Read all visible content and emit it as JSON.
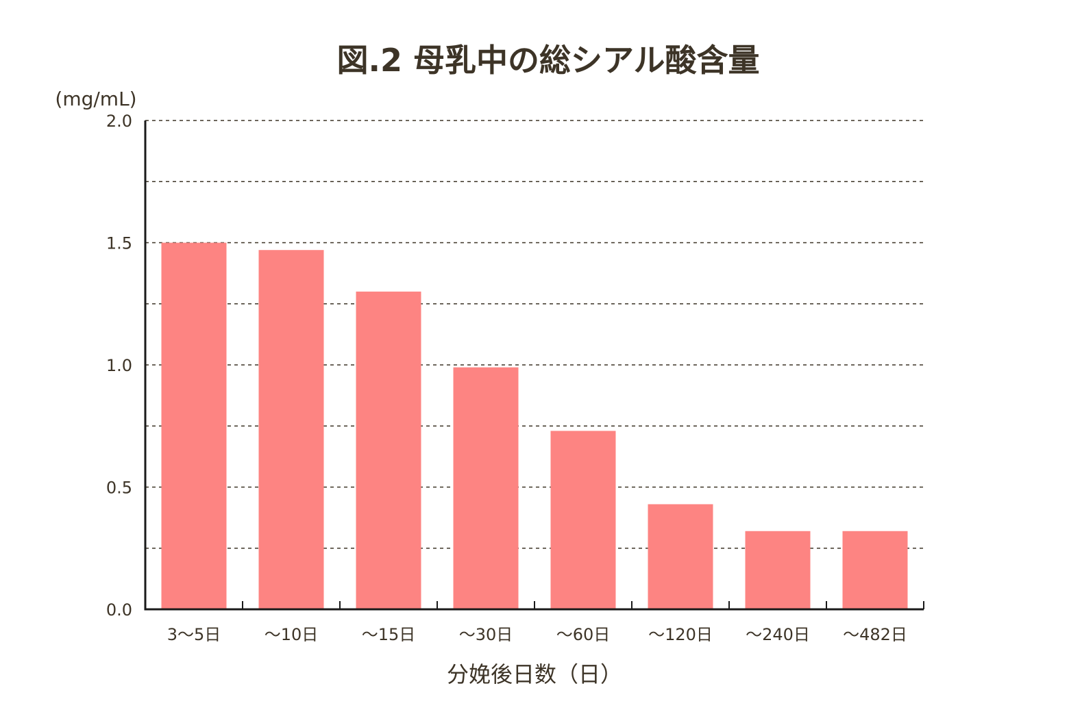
{
  "chart_data": {
    "type": "bar",
    "title": "図.2  母乳中の総シアル酸含量",
    "ylabel": "(mg/mL)",
    "xlabel": "分娩後日数（日）",
    "categories": [
      "3〜5日",
      "〜10日",
      "〜15日",
      "〜30日",
      "〜60日",
      "〜120日",
      "〜240日",
      "〜482日"
    ],
    "values": [
      1.5,
      1.47,
      1.3,
      0.99,
      0.73,
      0.43,
      0.32,
      0.32
    ],
    "ylim": [
      0,
      2.0
    ],
    "yticks": [
      0.0,
      0.5,
      1.0,
      1.5,
      2.0
    ],
    "ytick_labels": [
      "0.0",
      "0.5",
      "1.0",
      "1.5",
      "2.0"
    ],
    "grid_step": 0.25,
    "grid": true,
    "bar_color": "#fd8482",
    "text_color": "#3d3427"
  }
}
